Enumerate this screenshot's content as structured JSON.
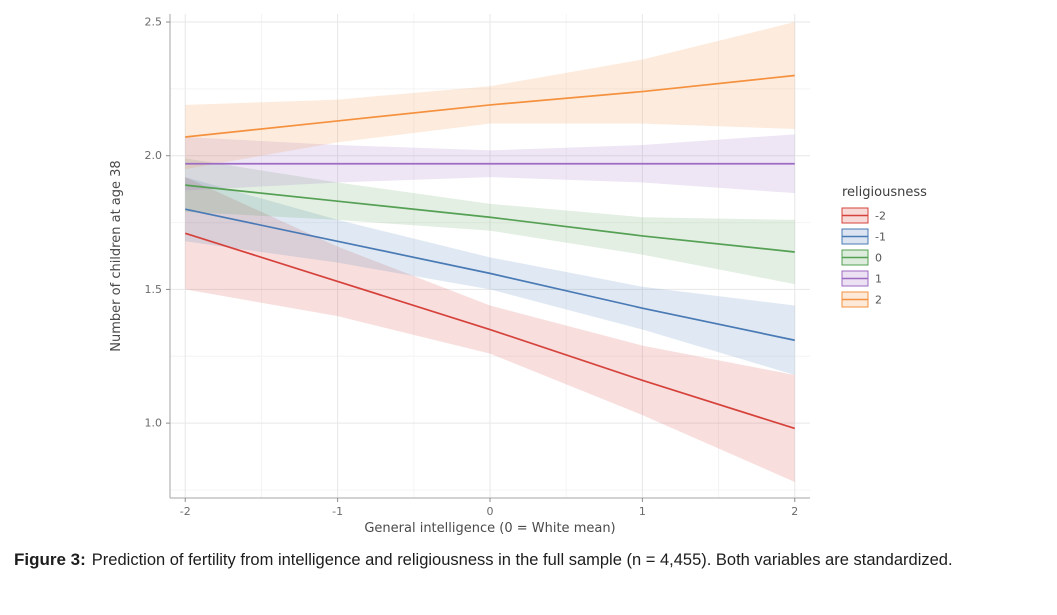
{
  "figure": {
    "caption_label": "Figure 3:",
    "caption_text": "Prediction of fertility from intelligence and religiousness in the full sample (n = 4,455). Both variables are standardized."
  },
  "chart_data": {
    "type": "line",
    "title": "",
    "xlabel": "General intelligence (0 = White mean)",
    "ylabel": "Number of children at age 38",
    "legend_title": "religiousness",
    "legend_position": "right",
    "grid": true,
    "xlim": [
      -2.1,
      2.1
    ],
    "ylim": [
      0.72,
      2.53
    ],
    "x_tick_values": [
      -2,
      -1,
      0,
      1,
      2
    ],
    "x_tick_labels": [
      "-2",
      "-1",
      "0",
      "1",
      "2"
    ],
    "y_tick_values": [
      1.0,
      1.5,
      2.0,
      2.5
    ],
    "y_tick_labels": [
      "1.0",
      "1.5",
      "2.0",
      "2.5"
    ],
    "x_minor": [
      -1.5,
      -0.5,
      0.5,
      1.5
    ],
    "y_minor": [
      0.75,
      1.25,
      1.75,
      2.25
    ],
    "x": [
      -2,
      -1,
      0,
      1,
      2
    ],
    "series": [
      {
        "name": "-2",
        "color": "#d6423b",
        "values": [
          1.71,
          1.53,
          1.35,
          1.16,
          0.98
        ],
        "ci_lo": [
          1.5,
          1.4,
          1.26,
          1.03,
          0.78
        ],
        "ci_hi": [
          1.92,
          1.66,
          1.44,
          1.29,
          1.18
        ]
      },
      {
        "name": "-1",
        "color": "#4a7ab5",
        "values": [
          1.8,
          1.68,
          1.56,
          1.43,
          1.31
        ],
        "ci_lo": [
          1.68,
          1.6,
          1.5,
          1.35,
          1.18
        ],
        "ci_hi": [
          1.92,
          1.76,
          1.62,
          1.51,
          1.44
        ]
      },
      {
        "name": "0",
        "color": "#55a054",
        "values": [
          1.89,
          1.83,
          1.77,
          1.7,
          1.64
        ],
        "ci_lo": [
          1.79,
          1.76,
          1.72,
          1.63,
          1.52
        ],
        "ci_hi": [
          1.99,
          1.9,
          1.82,
          1.77,
          1.76
        ]
      },
      {
        "name": "1",
        "color": "#9d6bc3",
        "values": [
          1.97,
          1.97,
          1.97,
          1.97,
          1.97
        ],
        "ci_lo": [
          1.87,
          1.9,
          1.92,
          1.9,
          1.86
        ],
        "ci_hi": [
          2.07,
          2.04,
          2.02,
          2.04,
          2.08
        ]
      },
      {
        "name": "2",
        "color": "#f5913e",
        "values": [
          2.07,
          2.13,
          2.19,
          2.24,
          2.3
        ],
        "ci_lo": [
          1.95,
          2.05,
          2.12,
          2.12,
          2.1
        ],
        "ci_hi": [
          2.19,
          2.21,
          2.26,
          2.36,
          2.5
        ]
      }
    ]
  }
}
